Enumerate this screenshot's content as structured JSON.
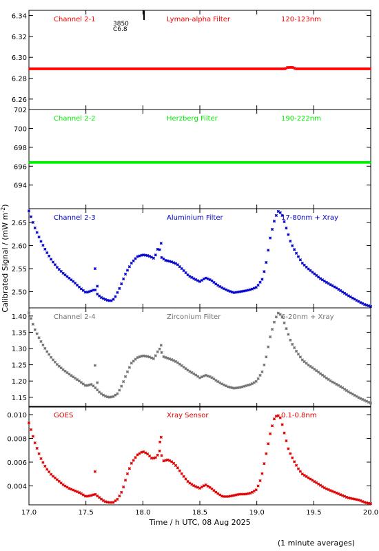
{
  "x_axis_label": "Time / h UTC, 08 Aug 2025",
  "y_axis_label": "Calibrated Signal / (mW m",
  "y_axis_label_sup": "-2",
  "y_axis_label_end": ")",
  "footnote": "(1 minute averages)",
  "flare_marks": [
    "3850",
    "C6.8"
  ],
  "chart_data": [
    {
      "type": "scatter",
      "channel": "Channel 2-1",
      "filter": "Lyman-alpha Filter",
      "band": "120-123nm",
      "color": "#ff0000",
      "xlim": [
        17.0,
        20.0
      ],
      "ylim": [
        6.25,
        6.345
      ],
      "yticks": [
        6.26,
        6.28,
        6.3,
        6.32,
        6.34
      ],
      "ytick_labels": [
        "6.26",
        "6.28",
        "6.30",
        "6.32",
        "6.34"
      ],
      "style": "dense",
      "series": [
        {
          "x": [
            17.0,
            19.25,
            19.27,
            19.32,
            19.34,
            20.0
          ],
          "y": [
            6.289,
            6.289,
            6.2903,
            6.2903,
            6.289,
            6.289
          ]
        }
      ]
    },
    {
      "type": "scatter",
      "channel": "Channel 2-2",
      "filter": "Herzberg Filter",
      "band": "190-222nm",
      "color": "#00ee00",
      "xlim": [
        17.0,
        20.0
      ],
      "ylim": [
        691.5,
        702.0
      ],
      "yticks": [
        694,
        696,
        698,
        700,
        702
      ],
      "ytick_labels": [
        "694",
        "696",
        "698",
        "700",
        "702"
      ],
      "style": "dense",
      "series": [
        {
          "x": [
            17.0,
            20.0
          ],
          "y": [
            696.4,
            696.4
          ]
        }
      ]
    },
    {
      "type": "scatter",
      "channel": "Channel 2-3",
      "filter": "Aluminium Filter",
      "band": "17-80nm + Xray",
      "color": "#0000cc",
      "xlim": [
        17.0,
        20.0
      ],
      "ylim": [
        2.465,
        2.68
      ],
      "yticks": [
        2.5,
        2.55,
        2.6,
        2.65
      ],
      "ytick_labels": [
        "2.50",
        "2.55",
        "2.60",
        "2.65"
      ],
      "style": "sparse",
      "series": [
        {
          "x": [
            17.0,
            17.05,
            17.1,
            17.15,
            17.2,
            17.25,
            17.3,
            17.35,
            17.4,
            17.45,
            17.5,
            17.55,
            17.58,
            17.6,
            17.63,
            17.68,
            17.72,
            17.75,
            17.8,
            17.85,
            17.9,
            17.95,
            18.0,
            18.05,
            18.1,
            18.12,
            18.14,
            18.16,
            18.2,
            18.25,
            18.3,
            18.35,
            18.4,
            18.45,
            18.5,
            18.55,
            18.6,
            18.65,
            18.7,
            18.75,
            18.8,
            18.85,
            18.9,
            18.95,
            19.0,
            19.05,
            19.08,
            19.12,
            19.16,
            19.19,
            19.22,
            19.25,
            19.3,
            19.35,
            19.4,
            19.45,
            19.5,
            19.55,
            19.6,
            19.65,
            19.7,
            19.75,
            19.8,
            19.85,
            19.9,
            19.95,
            20.0
          ],
          "y": [
            2.675,
            2.64,
            2.612,
            2.588,
            2.568,
            2.552,
            2.54,
            2.53,
            2.52,
            2.508,
            2.498,
            2.502,
            2.505,
            2.495,
            2.488,
            2.482,
            2.48,
            2.485,
            2.51,
            2.54,
            2.562,
            2.576,
            2.58,
            2.578,
            2.572,
            2.585,
            2.6,
            2.575,
            2.568,
            2.565,
            2.56,
            2.548,
            2.535,
            2.528,
            2.522,
            2.53,
            2.525,
            2.515,
            2.508,
            2.502,
            2.498,
            2.5,
            2.502,
            2.505,
            2.51,
            2.528,
            2.56,
            2.62,
            2.66,
            2.675,
            2.668,
            2.645,
            2.605,
            2.582,
            2.562,
            2.55,
            2.54,
            2.53,
            2.522,
            2.515,
            2.508,
            2.5,
            2.492,
            2.485,
            2.478,
            2.472,
            2.468
          ]
        }
      ],
      "outliers": [
        {
          "x": 17.58,
          "y": 2.55
        },
        {
          "x": 17.6,
          "y": 2.512
        },
        {
          "x": 18.16,
          "y": 2.605
        }
      ]
    },
    {
      "type": "scatter",
      "channel": "Channel 2-4",
      "filter": "Zirconium Filter",
      "band": "6-20nm + Xray",
      "color": "#707070",
      "xlim": [
        17.0,
        20.0
      ],
      "ylim": [
        1.12,
        1.425
      ],
      "yticks": [
        1.15,
        1.2,
        1.25,
        1.3,
        1.35,
        1.4
      ],
      "ytick_labels": [
        "1.15",
        "1.20",
        "1.25",
        "1.30",
        "1.35",
        "1.40"
      ],
      "style": "sparse",
      "series": [
        {
          "x": [
            17.0,
            17.05,
            17.1,
            17.15,
            17.2,
            17.25,
            17.3,
            17.35,
            17.4,
            17.45,
            17.5,
            17.55,
            17.58,
            17.62,
            17.66,
            17.7,
            17.74,
            17.78,
            17.82,
            17.86,
            17.9,
            17.95,
            18.0,
            18.05,
            18.1,
            18.12,
            18.15,
            18.18,
            18.22,
            18.26,
            18.3,
            18.35,
            18.4,
            18.45,
            18.5,
            18.55,
            18.6,
            18.65,
            18.7,
            18.75,
            18.8,
            18.85,
            18.9,
            18.95,
            19.0,
            19.05,
            19.08,
            19.12,
            19.16,
            19.19,
            19.22,
            19.25,
            19.3,
            19.35,
            19.4,
            19.45,
            19.5,
            19.55,
            19.6,
            19.65,
            19.7,
            19.75,
            19.8,
            19.85,
            19.9,
            19.95,
            20.0
          ],
          "y": [
            1.41,
            1.36,
            1.325,
            1.295,
            1.27,
            1.25,
            1.235,
            1.222,
            1.21,
            1.198,
            1.185,
            1.19,
            1.18,
            1.165,
            1.155,
            1.15,
            1.152,
            1.162,
            1.19,
            1.225,
            1.255,
            1.272,
            1.278,
            1.275,
            1.268,
            1.285,
            1.3,
            1.275,
            1.27,
            1.265,
            1.258,
            1.245,
            1.232,
            1.222,
            1.21,
            1.218,
            1.212,
            1.2,
            1.19,
            1.182,
            1.178,
            1.18,
            1.185,
            1.19,
            1.2,
            1.23,
            1.27,
            1.34,
            1.39,
            1.41,
            1.4,
            1.37,
            1.32,
            1.29,
            1.265,
            1.25,
            1.238,
            1.225,
            1.212,
            1.2,
            1.19,
            1.18,
            1.168,
            1.158,
            1.148,
            1.14,
            1.132
          ]
        }
      ],
      "outliers": [
        {
          "x": 17.58,
          "y": 1.248
        },
        {
          "x": 17.6,
          "y": 1.195
        },
        {
          "x": 18.16,
          "y": 1.31
        }
      ]
    },
    {
      "type": "scatter",
      "channel": "GOES",
      "filter": "Xray Sensor",
      "band": "0.1-0.8nm",
      "color": "#dd0000",
      "xlim": [
        17.0,
        20.0
      ],
      "ylim": [
        0.0024,
        0.0107
      ],
      "yticks": [
        0.004,
        0.006,
        0.008,
        0.01
      ],
      "ytick_labels": [
        "0.004",
        "0.006",
        "0.008",
        "0.010"
      ],
      "style": "sparse",
      "series": [
        {
          "x": [
            17.0,
            17.05,
            17.1,
            17.15,
            17.2,
            17.25,
            17.3,
            17.35,
            17.4,
            17.45,
            17.5,
            17.55,
            17.58,
            17.62,
            17.66,
            17.7,
            17.74,
            17.78,
            17.82,
            17.86,
            17.9,
            17.95,
            18.0,
            18.04,
            18.08,
            18.12,
            18.15,
            18.18,
            18.22,
            18.26,
            18.3,
            18.35,
            18.4,
            18.45,
            18.5,
            18.55,
            18.6,
            18.65,
            18.7,
            18.75,
            18.8,
            18.85,
            18.9,
            18.95,
            19.0,
            19.04,
            19.08,
            19.12,
            19.15,
            19.18,
            19.21,
            19.24,
            19.28,
            19.32,
            19.36,
            19.4,
            19.45,
            19.5,
            19.55,
            19.6,
            19.65,
            19.7,
            19.75,
            19.8,
            19.85,
            19.9,
            19.95,
            20.0
          ],
          "y": [
            0.0093,
            0.0077,
            0.0064,
            0.0055,
            0.0049,
            0.0045,
            0.0041,
            0.0038,
            0.0036,
            0.0034,
            0.0031,
            0.0032,
            0.0033,
            0.003,
            0.0027,
            0.0026,
            0.0026,
            0.0029,
            0.0036,
            0.0049,
            0.0059,
            0.0066,
            0.0069,
            0.0067,
            0.0063,
            0.0064,
            0.007,
            0.0061,
            0.0062,
            0.006,
            0.0056,
            0.0049,
            0.0043,
            0.004,
            0.0038,
            0.0041,
            0.0038,
            0.0034,
            0.0031,
            0.0031,
            0.0032,
            0.0033,
            0.0033,
            0.0034,
            0.0037,
            0.0047,
            0.0066,
            0.0085,
            0.0096,
            0.01,
            0.0097,
            0.0085,
            0.007,
            0.0062,
            0.0055,
            0.005,
            0.0047,
            0.0044,
            0.0041,
            0.0038,
            0.0036,
            0.0034,
            0.0032,
            0.003,
            0.0029,
            0.0028,
            0.0026,
            0.0025
          ]
        }
      ],
      "outliers": [
        {
          "x": 17.58,
          "y": 0.0052
        },
        {
          "x": 18.15,
          "y": 0.0077
        },
        {
          "x": 18.16,
          "y": 0.0081
        }
      ]
    }
  ],
  "xticks": [
    17.0,
    17.5,
    18.0,
    18.5,
    19.0,
    19.5,
    20.0
  ],
  "xtick_labels": [
    "17.0",
    "17.5",
    "18.0",
    "18.5",
    "19.0",
    "19.5",
    "20.0"
  ]
}
